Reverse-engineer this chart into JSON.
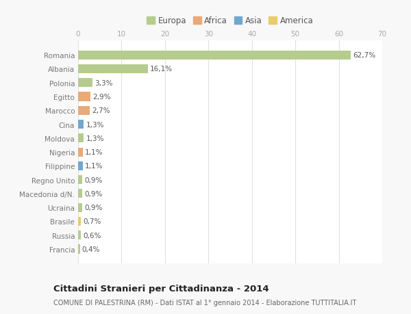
{
  "countries": [
    "Romania",
    "Albania",
    "Polonia",
    "Egitto",
    "Marocco",
    "Cina",
    "Moldova",
    "Nigeria",
    "Filippine",
    "Regno Unito",
    "Macedonia d/N.",
    "Ucraina",
    "Brasile",
    "Russia",
    "Francia"
  ],
  "values": [
    62.7,
    16.1,
    3.3,
    2.9,
    2.7,
    1.3,
    1.3,
    1.1,
    1.1,
    0.9,
    0.9,
    0.9,
    0.7,
    0.6,
    0.4
  ],
  "labels": [
    "62,7%",
    "16,1%",
    "3,3%",
    "2,9%",
    "2,7%",
    "1,3%",
    "1,3%",
    "1,1%",
    "1,1%",
    "0,9%",
    "0,9%",
    "0,9%",
    "0,7%",
    "0,6%",
    "0,4%"
  ],
  "continent": [
    "Europa",
    "Europa",
    "Europa",
    "Africa",
    "Africa",
    "Asia",
    "Europa",
    "Africa",
    "Asia",
    "Europa",
    "Europa",
    "Europa",
    "America",
    "Europa",
    "Europa"
  ],
  "colors": {
    "Europa": "#b5cc8e",
    "Africa": "#e8aa78",
    "Asia": "#6fa8cc",
    "America": "#e8cc6e"
  },
  "xlim": [
    0,
    70
  ],
  "xticks": [
    0,
    10,
    20,
    30,
    40,
    50,
    60,
    70
  ],
  "title": "Cittadini Stranieri per Cittadinanza - 2014",
  "subtitle": "COMUNE DI PALESTRINA (RM) - Dati ISTAT al 1° gennaio 2014 - Elaborazione TUTTITALIA.IT",
  "background_color": "#f8f8f8",
  "plot_bg": "#ffffff",
  "bar_height": 0.65,
  "bar_alpha": 1.0,
  "grid_color": "#e0e0e0",
  "label_fontsize": 7.5,
  "ytick_fontsize": 7.5,
  "xtick_fontsize": 7.5,
  "title_fontsize": 9.5,
  "subtitle_fontsize": 7.0,
  "legend_fontsize": 8.5
}
